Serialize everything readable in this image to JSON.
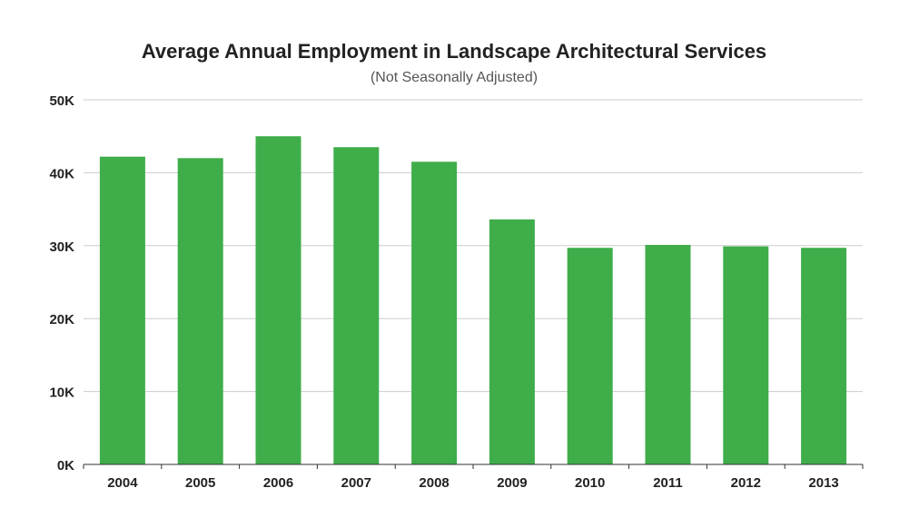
{
  "chart_data": {
    "type": "bar",
    "title": "Average Annual Employment in Landscape Architectural Services",
    "subtitle": "(Not Seasonally Adjusted)",
    "categories": [
      "2004",
      "2005",
      "2006",
      "2007",
      "2008",
      "2009",
      "2010",
      "2011",
      "2012",
      "2013"
    ],
    "values": [
      42200,
      42000,
      45000,
      43500,
      41500,
      33600,
      29700,
      30100,
      29900,
      29700
    ],
    "ylim": [
      0,
      50000
    ],
    "yticks": [
      0,
      10000,
      20000,
      30000,
      40000,
      50000
    ],
    "ytick_labels": [
      "0K",
      "10K",
      "20K",
      "30K",
      "40K",
      "50K"
    ],
    "grid": true,
    "legend": "none",
    "bar_color": "#3fad4a"
  }
}
